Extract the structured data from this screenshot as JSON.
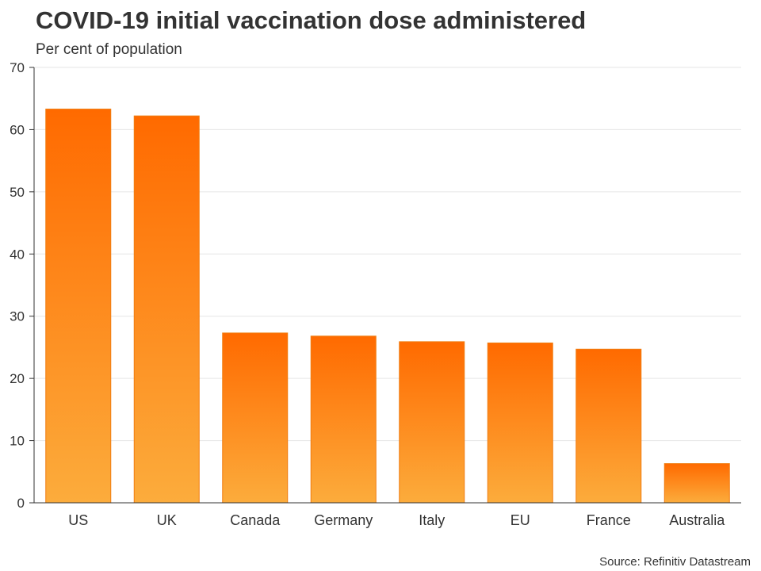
{
  "header": {
    "title": "COVID-19 initial vaccination dose administered",
    "subtitle": "Per cent of population"
  },
  "footer": {
    "source": "Source: Refinitiv Datastream"
  },
  "colors": {
    "bar_top": "#ff6a00",
    "bar_bottom": "#fcac3c",
    "bar_stroke": "#f07d10",
    "grid": "#e6e6e6",
    "axis": "#333333"
  },
  "chart_data": {
    "type": "bar",
    "title": "COVID-19 initial vaccination dose administered",
    "subtitle": "Per cent of population",
    "xlabel": "",
    "ylabel": "Per cent of population",
    "categories": [
      "US",
      "UK",
      "Canada",
      "Germany",
      "Italy",
      "EU",
      "France",
      "Australia"
    ],
    "values": [
      63.3,
      62.2,
      27.3,
      26.8,
      25.9,
      25.7,
      24.7,
      6.3
    ],
    "ylim": [
      0,
      70
    ],
    "yticks": [
      0,
      10,
      20,
      30,
      40,
      50,
      60,
      70
    ],
    "grid": true,
    "legend": "none"
  }
}
